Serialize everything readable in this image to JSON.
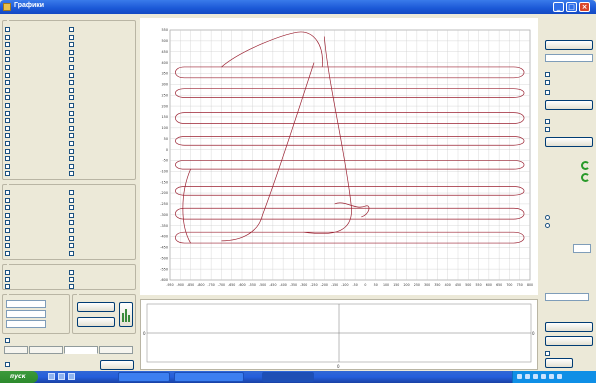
{
  "window": {
    "title": "Графики"
  },
  "plot": {
    "x_ticks": [
      "-950",
      "-900",
      "-850",
      "-800",
      "-750",
      "-700",
      "-650",
      "-600",
      "-550",
      "-500",
      "-450",
      "-400",
      "-350",
      "-300",
      "-250",
      "-200",
      "-150",
      "-100",
      "-50",
      "0",
      "50",
      "100",
      "150",
      "200",
      "250",
      "300",
      "350",
      "400",
      "450",
      "500",
      "550",
      "600",
      "650",
      "700",
      "750",
      "800"
    ],
    "y_ticks": [
      "550",
      "500",
      "450",
      "400",
      "350",
      "300",
      "250",
      "200",
      "150",
      "100",
      "50",
      "0",
      "-50",
      "-100",
      "-150",
      "-200",
      "-250",
      "-300",
      "-350",
      "-400",
      "-450",
      "-500",
      "-550",
      "-600"
    ],
    "series_color": "#9b2232",
    "grid_color": "#c8c8c8"
  },
  "lower_panel": {
    "left_mark": "0",
    "right_mark": "0",
    "bottom_mark": "0"
  },
  "left_panel": {
    "group1_title": "",
    "group2_title": "",
    "group3_title": "",
    "group4_title": "",
    "group5_title": "",
    "btn_a": "",
    "btn_b": "",
    "btn_c": "",
    "chk_bottom": "",
    "tabs": [
      {
        "label": ""
      },
      {
        "label": ""
      },
      {
        "label": ""
      },
      {
        "label": ""
      }
    ],
    "btn_bottom": ""
  },
  "right_panel": {
    "top_label": "",
    "btn_top": "",
    "btn_2": "",
    "btn_3": "",
    "btn_4": "",
    "spin_value": "",
    "spin2_value": "",
    "btn_5": "",
    "btn_6": "",
    "btn_bottom": ""
  },
  "taskbar": {
    "start_label": "пуск"
  }
}
